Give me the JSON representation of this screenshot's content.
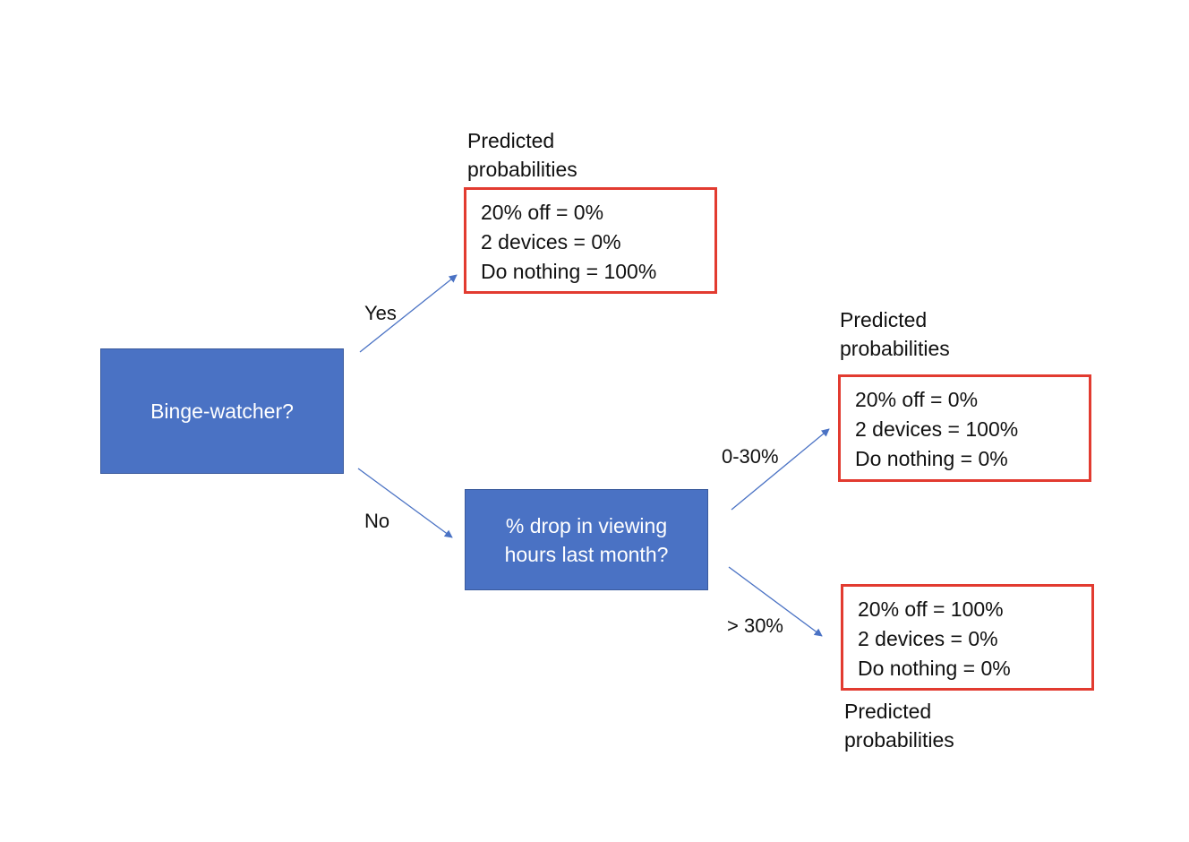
{
  "root": {
    "label": "Binge-watcher?"
  },
  "split": {
    "label": "% drop in viewing\nhours last month?"
  },
  "edges": {
    "yes": "Yes",
    "no": "No",
    "low": "0-30%",
    "high": "> 30%"
  },
  "leaves": [
    {
      "caption": [
        "Predicted",
        "probabilities"
      ],
      "rows": [
        "20% off = 0%",
        "2 devices = 0%",
        "Do nothing = 100%"
      ]
    },
    {
      "caption": [
        "Predicted",
        "probabilities"
      ],
      "rows": [
        "20% off = 0%",
        "2 devices = 100%",
        "Do nothing = 0%"
      ]
    },
    {
      "caption": [
        "Predicted",
        "probabilities"
      ],
      "rows": [
        "20% off = 100%",
        "2 devices = 0%",
        "Do nothing = 0%"
      ]
    }
  ],
  "colors": {
    "node_fill": "#4a72c4",
    "leaf_border": "#e23b30",
    "arrow": "#4a72c4"
  }
}
